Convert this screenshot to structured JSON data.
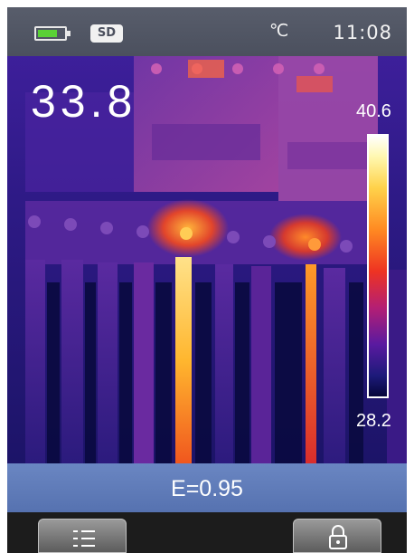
{
  "status_bar": {
    "battery_level": 0.75,
    "storage_badge": "SD",
    "temperature_unit": "℃",
    "time": "11:08"
  },
  "thermal_view": {
    "spot_temperature": "33.8",
    "scale_max": "40.6",
    "scale_min": "28.2",
    "palette": "iron"
  },
  "emissivity": "E=0.95",
  "softkeys": {
    "left_icon": "menu-list-icon",
    "right_icon": "lock-icon"
  },
  "colors": {
    "status_bar": "#585d6b",
    "battery_fill": "#5ad136",
    "emissivity_bar": "#6a86c2"
  }
}
